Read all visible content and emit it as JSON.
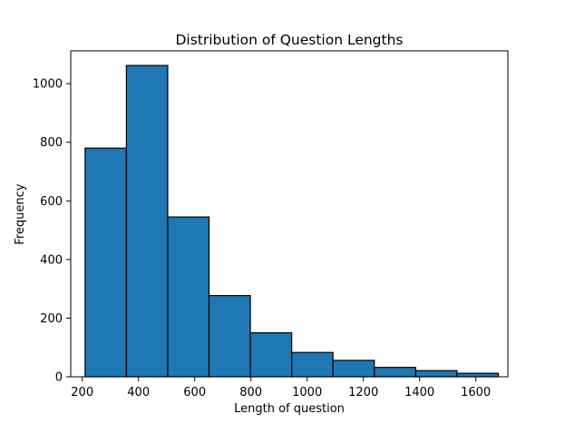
{
  "chart_data": {
    "type": "bar",
    "title": "Distribution of Question Lengths",
    "xlabel": "Length of question",
    "ylabel": "Frequency",
    "xlim": [
      159,
      1714
    ],
    "ylim": [
      0,
      1112
    ],
    "bin_edges": [
      210,
      357,
      504,
      651,
      798,
      945,
      1092,
      1239,
      1386,
      1533,
      1680
    ],
    "values": [
      780,
      1062,
      545,
      277,
      150,
      83,
      56,
      32,
      21,
      12
    ],
    "x_ticks": [
      200,
      400,
      600,
      800,
      1000,
      1200,
      1400,
      1600
    ],
    "y_ticks": [
      0,
      200,
      400,
      600,
      800,
      1000
    ],
    "bar_color": "#1f77b4",
    "edge_color": "#000000",
    "grid": false,
    "legend": false
  }
}
